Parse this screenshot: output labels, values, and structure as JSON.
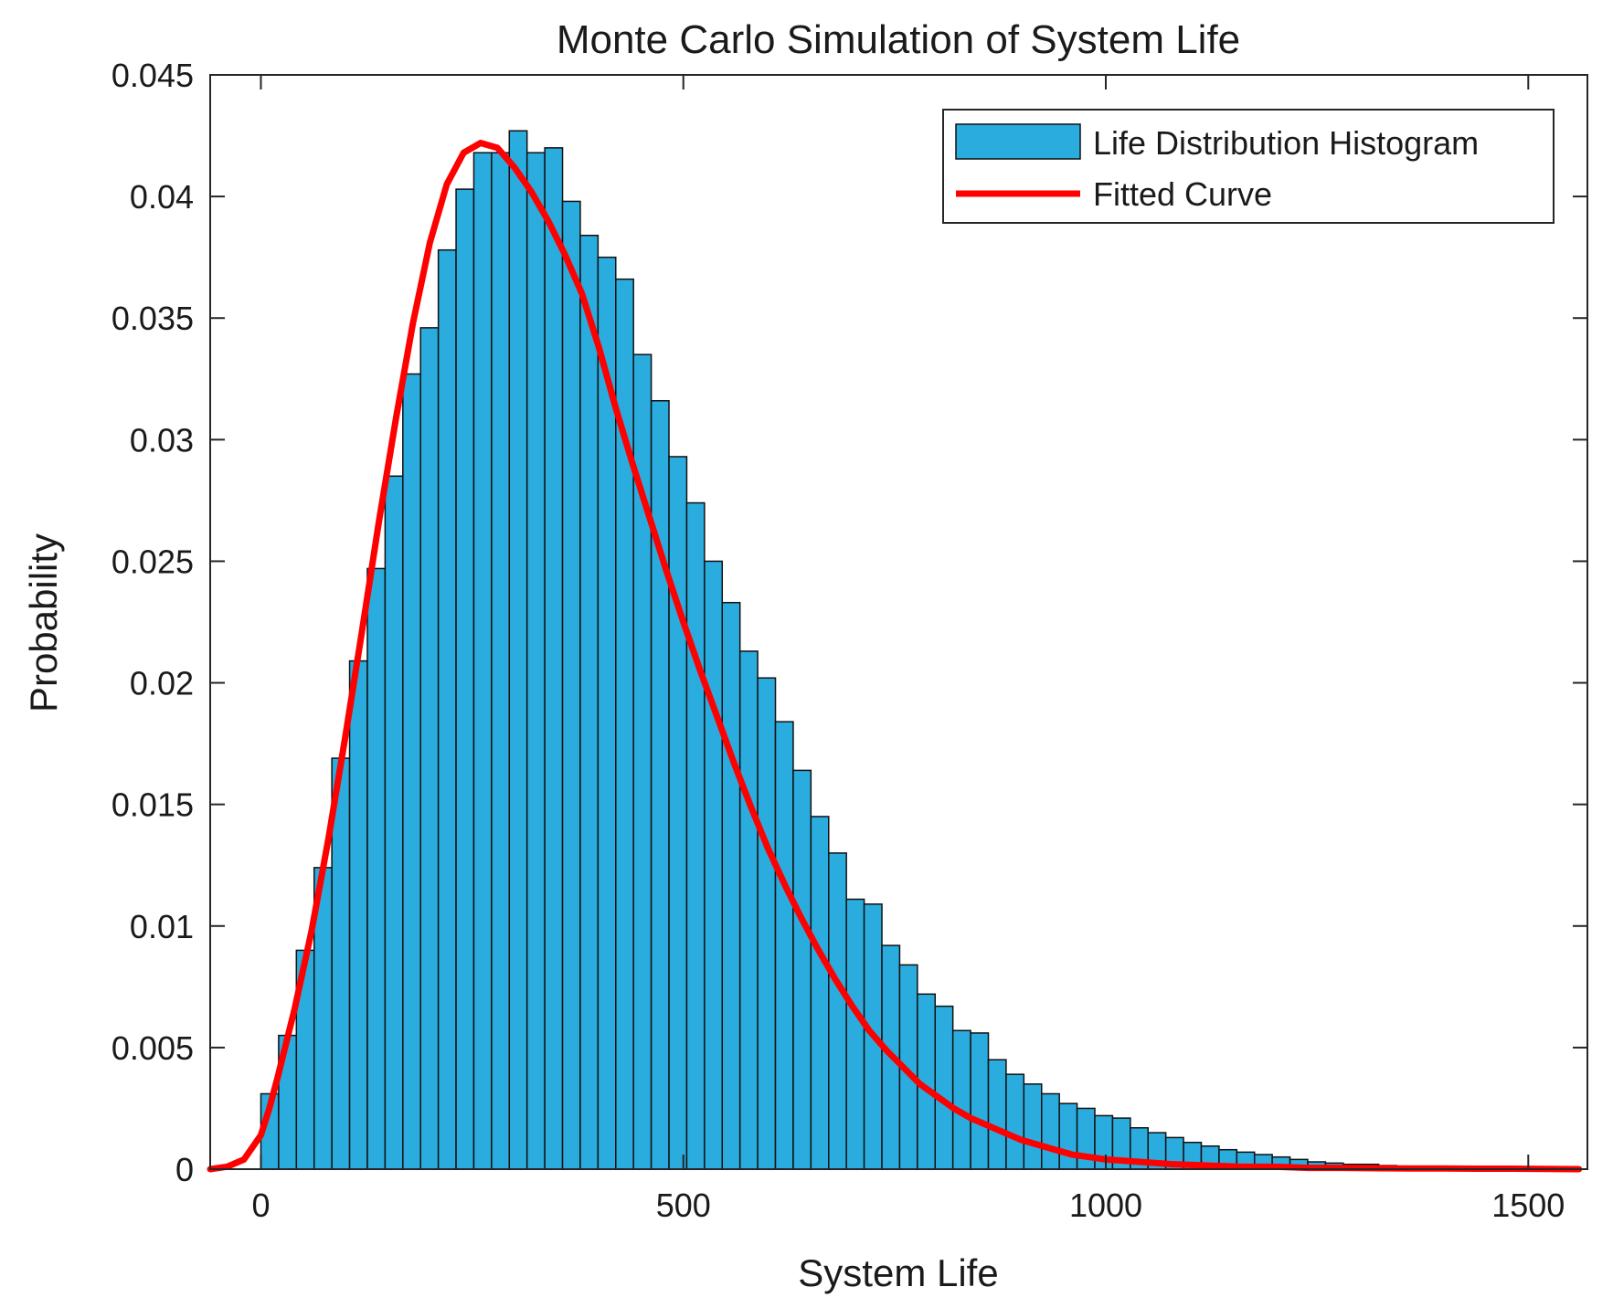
{
  "chart_data": {
    "type": "bar",
    "title": "Monte Carlo Simulation of System Life",
    "xlabel": "System Life",
    "ylabel": "Probability",
    "xlim": [
      -60,
      1570
    ],
    "ylim": [
      0,
      0.045
    ],
    "x_ticks": [
      0,
      500,
      1000,
      1500
    ],
    "x_tick_labels": [
      "0",
      "500",
      "1000",
      "1500"
    ],
    "y_ticks": [
      0,
      0.005,
      0.01,
      0.015,
      0.02,
      0.025,
      0.03,
      0.035,
      0.04,
      0.045
    ],
    "y_tick_labels": [
      "0",
      "0.005",
      "0.01",
      "0.015",
      "0.02",
      "0.025",
      "0.03",
      "0.035",
      "0.04",
      "0.045"
    ],
    "grid": false,
    "legend_position": "top-right",
    "colors": {
      "bars": "#2aacdf",
      "bar_edge": "#111111",
      "curve": "#ff0000"
    },
    "histogram": {
      "name": "Life Distribution Histogram",
      "bin_width": 21,
      "bin_start": 0,
      "values": [
        0.0031,
        0.0055,
        0.009,
        0.0124,
        0.0169,
        0.0209,
        0.0247,
        0.0285,
        0.0327,
        0.0346,
        0.0378,
        0.0403,
        0.0418,
        0.0418,
        0.0427,
        0.0418,
        0.042,
        0.0398,
        0.0384,
        0.0375,
        0.0366,
        0.0335,
        0.0316,
        0.0293,
        0.0274,
        0.025,
        0.0233,
        0.0213,
        0.0202,
        0.0184,
        0.0164,
        0.0145,
        0.013,
        0.0111,
        0.0109,
        0.0092,
        0.0084,
        0.0072,
        0.0067,
        0.0057,
        0.0056,
        0.0045,
        0.0039,
        0.0035,
        0.0031,
        0.0027,
        0.0025,
        0.0022,
        0.0021,
        0.0017,
        0.0015,
        0.0013,
        0.0011,
        0.00095,
        0.0008,
        0.0007,
        0.0006,
        0.0005,
        0.0004,
        0.0003,
        0.00025,
        0.0002,
        0.0002,
        0.00015,
        0.00012,
        0.0001,
        0.0001,
        8e-05,
        6e-05,
        5e-05,
        4e-05,
        0.0001
      ]
    },
    "curve": {
      "name": "Fitted Curve",
      "x": [
        -60,
        -40,
        -20,
        0,
        10,
        20,
        40,
        60,
        80,
        100,
        120,
        140,
        160,
        180,
        200,
        220,
        240,
        260,
        280,
        300,
        320,
        340,
        360,
        380,
        400,
        420,
        440,
        460,
        480,
        500,
        520,
        540,
        560,
        580,
        600,
        620,
        640,
        660,
        680,
        700,
        720,
        740,
        760,
        780,
        800,
        820,
        840,
        860,
        880,
        900,
        920,
        940,
        960,
        980,
        1000,
        1040,
        1080,
        1120,
        1160,
        1200,
        1240,
        1280,
        1320,
        1360,
        1400,
        1440,
        1480,
        1520,
        1560
      ],
      "y": [
        0,
        0.0001,
        0.0004,
        0.0014,
        0.0025,
        0.0038,
        0.0066,
        0.0098,
        0.0136,
        0.0178,
        0.0222,
        0.0267,
        0.0309,
        0.0348,
        0.0381,
        0.0405,
        0.0418,
        0.0422,
        0.042,
        0.0412,
        0.0402,
        0.039,
        0.0376,
        0.036,
        0.0338,
        0.0313,
        0.029,
        0.0268,
        0.0246,
        0.0225,
        0.0205,
        0.0186,
        0.0167,
        0.0149,
        0.0132,
        0.0117,
        0.0103,
        0.009,
        0.0078,
        0.0067,
        0.0057,
        0.0049,
        0.0042,
        0.0035,
        0.003,
        0.0025,
        0.0021,
        0.0018,
        0.0015,
        0.0012,
        0.001,
        0.0008,
        0.0006,
        0.0005,
        0.0004,
        0.0003,
        0.0002,
        0.00015,
        0.0001,
        0.0001,
        5e-05,
        5e-05,
        4e-05,
        3e-05,
        3e-05,
        2e-05,
        2e-05,
        1e-05,
        0
      ]
    }
  }
}
